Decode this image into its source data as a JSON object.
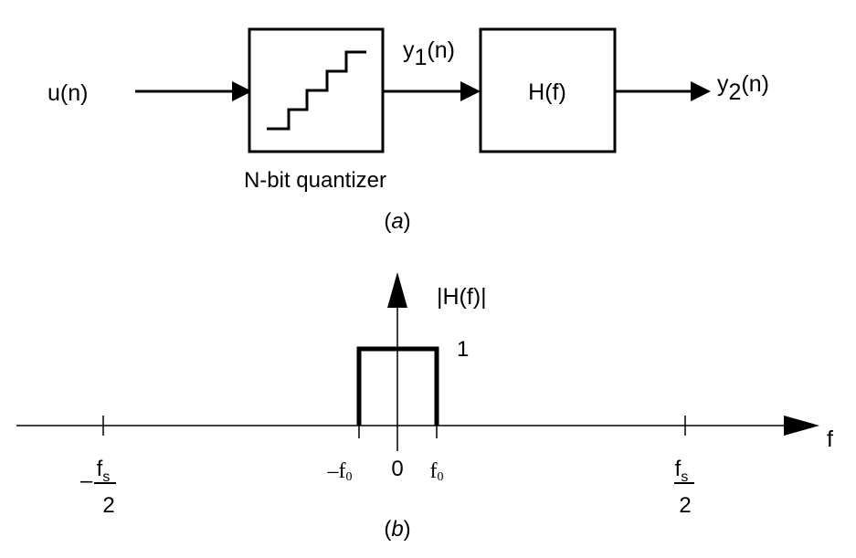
{
  "part_a": {
    "input_label": "u",
    "input_arg": "(n)",
    "quantizer_label": "N-bit quantizer",
    "intermediate_label": "y",
    "intermediate_sub": "1",
    "intermediate_arg": "(n)",
    "filter_label": "H(f)",
    "output_label": "y",
    "output_sub": "2",
    "output_arg": "(n)",
    "caption_open": "(",
    "caption_letter": "a",
    "caption_close": ")"
  },
  "part_b": {
    "yaxis_label": "|H(f)|",
    "passband_level": "1",
    "xaxis_label": "f",
    "tick_neg_f0_minus": "–",
    "tick_neg_f0": "f",
    "tick_neg_f0_sub": "0",
    "tick_zero": "0",
    "tick_pos_f0": "f",
    "tick_pos_f0_sub": "0",
    "tick_neg_fs_minus": "–",
    "tick_neg_fs_num": "f",
    "tick_neg_fs_num_sub": "s",
    "tick_neg_fs_den": "2",
    "tick_pos_fs_num": "f",
    "tick_pos_fs_num_sub": "s",
    "tick_pos_fs_den": "2",
    "caption_open": "(",
    "caption_letter": "b",
    "caption_close": ")"
  }
}
